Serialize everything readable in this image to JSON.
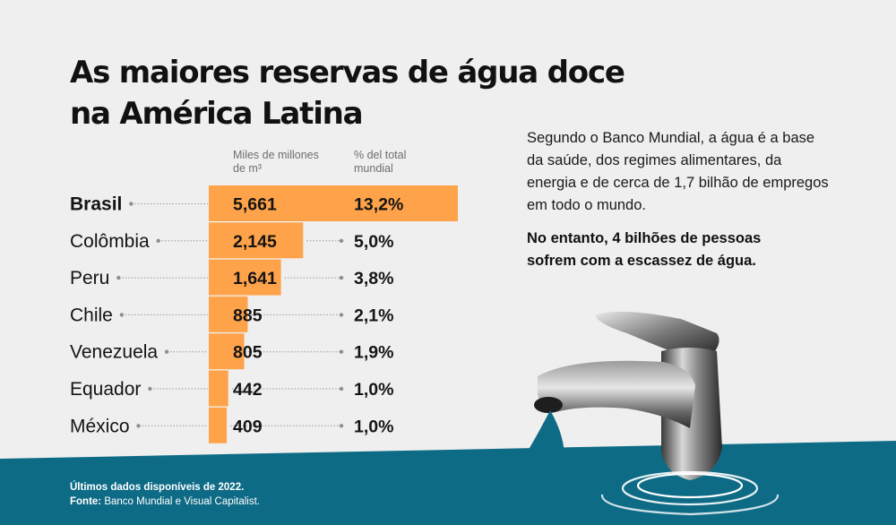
{
  "title_lines": [
    "As maiores reservas de água doce",
    "na América Latina"
  ],
  "description": "Segundo o Banco Mundial, a água é a base da saúde, dos regimes alimentares, da energia e de cerca de 1,7 bilhão de empregos em todo o mundo.",
  "emphasis": "No entanto, 4 bilhões de pessoas sofrem com a escassez de água.",
  "footer": {
    "note": "Últimos dados disponíveis de 2022.",
    "source_label": "Fonte:",
    "source_text": "Banco Mundial e Visual Capitalist."
  },
  "colors": {
    "bar": "#ffa34a",
    "ocean": "#0e6b86",
    "background": "#efefef",
    "text": "#141414",
    "muted": "#6e6e6e"
  },
  "icons": [
    "faucet-icon",
    "water-drop-icon",
    "ripple-icon"
  ],
  "chart_data": {
    "type": "bar",
    "orientation": "horizontal",
    "value_header": "Miles de millones de m³",
    "share_header": "% del total mundial",
    "categories": [
      "Brasil",
      "Colômbia",
      "Peru",
      "Chile",
      "Venezuela",
      "Equador",
      "México"
    ],
    "values": [
      5661,
      2145,
      1641,
      885,
      805,
      442,
      409
    ],
    "value_labels": [
      "5,661",
      "2,145",
      "1,641",
      "885",
      "805",
      "442",
      "409"
    ],
    "shares": [
      "13,2%",
      "5,0%",
      "3,8%",
      "2,1%",
      "1,9%",
      "1,0%",
      "1,0%"
    ],
    "xlim": [
      0,
      5661
    ],
    "grid": false
  }
}
